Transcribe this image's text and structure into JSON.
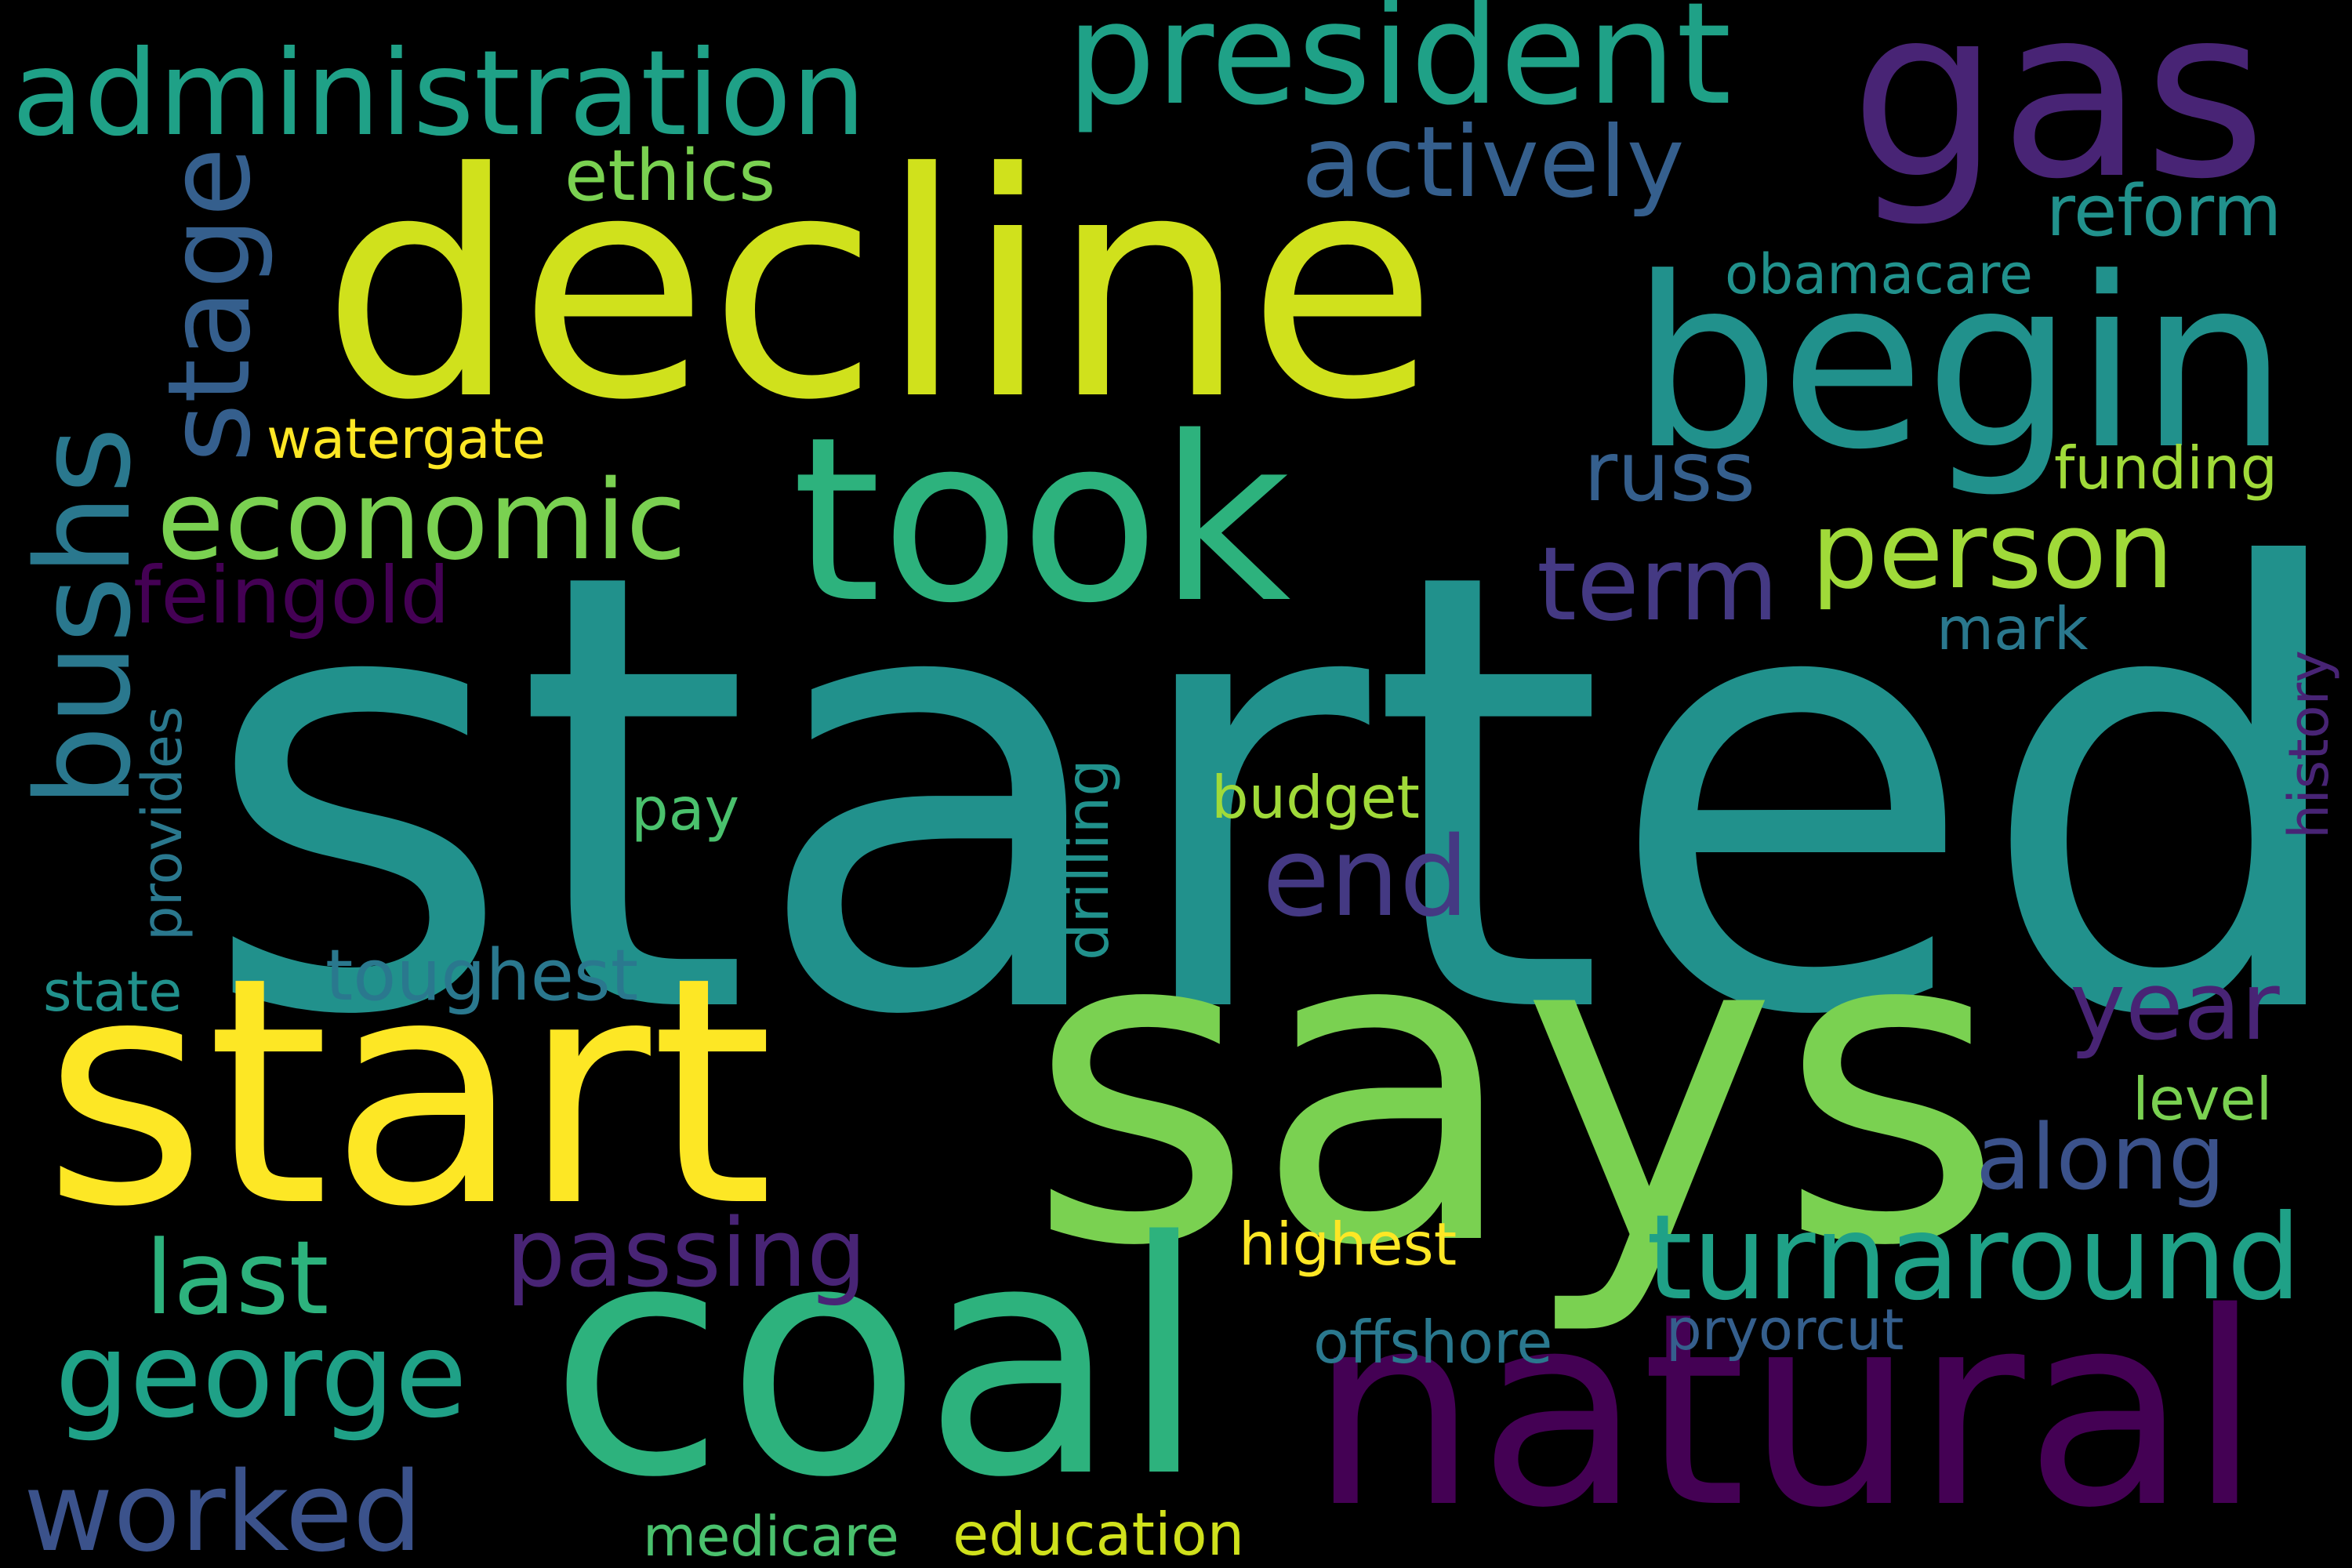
{
  "words": {
    "started": {
      "text": "started",
      "color": "#21918c"
    },
    "says": {
      "text": "says",
      "color": "#7ad151"
    },
    "start": {
      "text": "start",
      "color": "#fde725"
    },
    "decline": {
      "text": "decline",
      "color": "#d0e11c"
    },
    "coal": {
      "text": "coal",
      "color": "#2db27d"
    },
    "natural": {
      "text": "natural",
      "color": "#440154"
    },
    "begin": {
      "text": "begin",
      "color": "#21918c"
    },
    "took": {
      "text": "took",
      "color": "#2db27d"
    },
    "gas": {
      "text": "gas",
      "color": "#482475"
    },
    "president": {
      "text": "president",
      "color": "#1fa187"
    },
    "administration": {
      "text": "administration",
      "color": "#1fa187"
    },
    "turnaround": {
      "text": "turnaround",
      "color": "#1fa187"
    },
    "economic": {
      "text": "economic",
      "color": "#7ad151"
    },
    "george": {
      "text": "george",
      "color": "#1fa187"
    },
    "person": {
      "text": "person",
      "color": "#a0da39"
    },
    "actively": {
      "text": "actively",
      "color": "#355f8d"
    },
    "end": {
      "text": "end",
      "color": "#443983"
    },
    "term": {
      "text": "term",
      "color": "#443983"
    },
    "year": {
      "text": "year",
      "color": "#482475"
    },
    "along": {
      "text": "along",
      "color": "#3b528b"
    },
    "worked": {
      "text": "worked",
      "color": "#3b528b"
    },
    "last": {
      "text": "last",
      "color": "#2db27d"
    },
    "passing": {
      "text": "passing",
      "color": "#482475"
    },
    "toughest": {
      "text": "toughest",
      "color": "#2a788e"
    },
    "feingold": {
      "text": "feingold",
      "color": "#440154"
    },
    "russ": {
      "text": "russ",
      "color": "#355f8d"
    },
    "reform": {
      "text": "reform",
      "color": "#21918c"
    },
    "ethics": {
      "text": "ethics",
      "color": "#7ad151"
    },
    "watergate": {
      "text": "watergate",
      "color": "#fde725"
    },
    "obamacare": {
      "text": "obamacare",
      "color": "#21918c"
    },
    "funding": {
      "text": "funding",
      "color": "#a0da39"
    },
    "mark": {
      "text": "mark",
      "color": "#2a788e"
    },
    "budget": {
      "text": "budget",
      "color": "#a0da39"
    },
    "pay": {
      "text": "pay",
      "color": "#4ac16d"
    },
    "state": {
      "text": "state",
      "color": "#21918c"
    },
    "level": {
      "text": "level",
      "color": "#7ad151"
    },
    "highest": {
      "text": "highest",
      "color": "#fde725"
    },
    "offshore": {
      "text": "offshore",
      "color": "#2a788e"
    },
    "pryorcut": {
      "text": "pryorcut",
      "color": "#355f8d"
    },
    "medicare": {
      "text": "medicare",
      "color": "#4ac16d"
    },
    "education": {
      "text": "education",
      "color": "#d0e11c"
    },
    "stage": {
      "text": "stage",
      "color": "#355f8d"
    },
    "bushs": {
      "text": "bushs",
      "color": "#2a788e"
    },
    "provides": {
      "text": "provides",
      "color": "#2a788e"
    },
    "drilling": {
      "text": "drilling",
      "color": "#21918c"
    },
    "history": {
      "text": "history",
      "color": "#482475"
    }
  }
}
